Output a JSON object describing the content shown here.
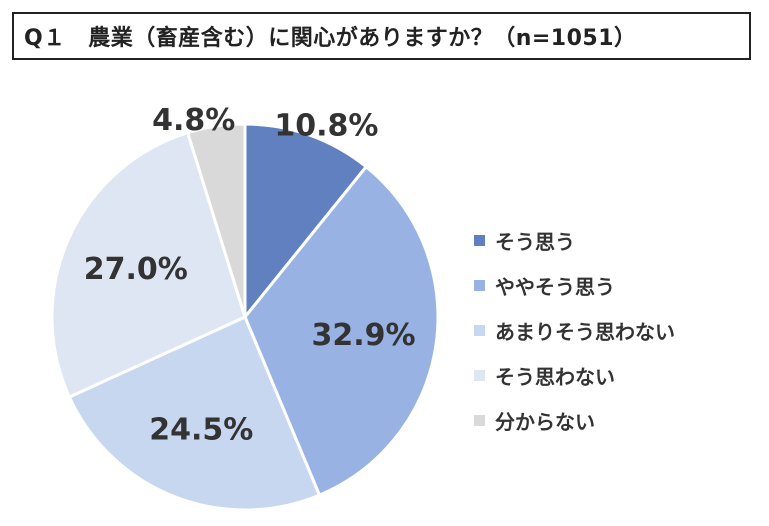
{
  "title": "Q１　農業（畜産含む）に関心がありますか？（n=1051）",
  "chart_data": {
    "type": "pie",
    "categories": [
      "そう思う",
      "ややそう思う",
      "あまりそう思わない",
      "そう思わない",
      "分からない"
    ],
    "values": [
      10.8,
      32.9,
      24.5,
      27.0,
      4.8
    ],
    "data_labels": [
      "10.8%",
      "32.9%",
      "24.5%",
      "27.0%",
      "4.8%"
    ],
    "colors": [
      "#6080C0",
      "#97B2E3",
      "#C7D7F0",
      "#DEE6F3",
      "#D9D9D9"
    ],
    "start_angle": "12 o'clock",
    "direction": "clockwise",
    "legend_position": "right"
  }
}
